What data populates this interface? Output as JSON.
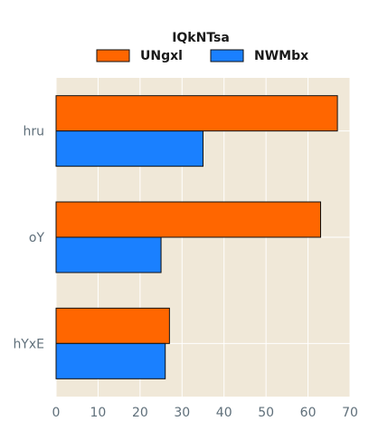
{
  "chart_data": {
    "type": "bar",
    "orientation": "horizontal",
    "categories": [
      "hru",
      "oY",
      "hYxE"
    ],
    "series": [
      {
        "name": "UNgxl",
        "values": [
          67,
          63,
          27
        ],
        "color": "#ff6600"
      },
      {
        "name": "NWMbx",
        "values": [
          35,
          25,
          26
        ],
        "color": "#1a80ff"
      }
    ],
    "xlim": [
      0,
      70
    ],
    "xticks": [
      0,
      10,
      20,
      30,
      40,
      50,
      60,
      70
    ],
    "legend": {
      "title": "IQkNTsa",
      "placement": "top-center"
    },
    "grid": true,
    "background": "#f0e8d8",
    "title": "",
    "xlabel": "",
    "ylabel": ""
  }
}
